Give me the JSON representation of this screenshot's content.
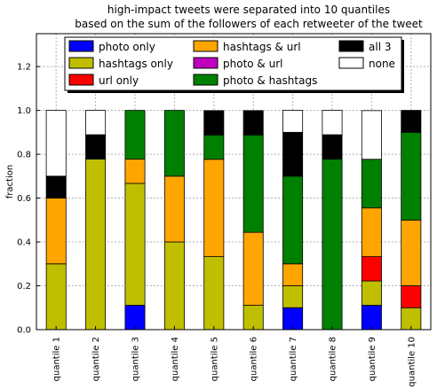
{
  "chart_data": {
    "type": "bar",
    "stacked": true,
    "title": "high-impact tweets were separated into 10 quantiles",
    "subtitle": "based on the sum of the followers of each retweeter of the tweet",
    "xlabel": "",
    "ylabel": "fraction",
    "ylim": [
      0,
      1.35
    ],
    "yticks": [
      0.0,
      0.2,
      0.4,
      0.6,
      0.8,
      1.0,
      1.2
    ],
    "ytick_labels": [
      "0.0",
      "0.2",
      "0.4",
      "0.6",
      "0.8",
      "1.0",
      "1.2"
    ],
    "grid": true,
    "legend_position": "top",
    "categories": [
      "quantile 1",
      "quantile 2",
      "quantile 3",
      "quantile 4",
      "quantile 5",
      "quantile 6",
      "quantile 7",
      "quantile 8",
      "quantile 9",
      "quantile 10"
    ],
    "series": [
      {
        "name": "photo only",
        "color": "#0000ff",
        "values": [
          0,
          0,
          0.111,
          0,
          0,
          0,
          0.1,
          0,
          0.111,
          0
        ]
      },
      {
        "name": "hashtags only",
        "color": "#bfbf00",
        "values": [
          0.3,
          0.778,
          0.556,
          0.4,
          0.333,
          0.111,
          0.1,
          0,
          0.111,
          0.1
        ]
      },
      {
        "name": "url only",
        "color": "#ff0000",
        "values": [
          0,
          0,
          0,
          0,
          0,
          0,
          0,
          0,
          0.111,
          0.1
        ]
      },
      {
        "name": "hashtags & url",
        "color": "#ffa500",
        "values": [
          0.3,
          0,
          0.111,
          0.3,
          0.444,
          0.333,
          0.1,
          0,
          0.222,
          0.3
        ]
      },
      {
        "name": "photo & url",
        "color": "#bf00bf",
        "values": [
          0,
          0,
          0,
          0,
          0,
          0,
          0,
          0,
          0,
          0
        ]
      },
      {
        "name": "photo & hashtags",
        "color": "#008000",
        "values": [
          0,
          0,
          0.222,
          0.3,
          0.111,
          0.444,
          0.4,
          0.778,
          0.222,
          0.4
        ]
      },
      {
        "name": "all 3",
        "color": "#000000",
        "values": [
          0.1,
          0.111,
          0,
          0,
          0.111,
          0.111,
          0.2,
          0.111,
          0,
          0.1
        ]
      },
      {
        "name": "none",
        "color": "#ffffff",
        "values": [
          0.3,
          0.111,
          0,
          0,
          0,
          0,
          0.1,
          0.111,
          0.222,
          0
        ]
      }
    ]
  }
}
